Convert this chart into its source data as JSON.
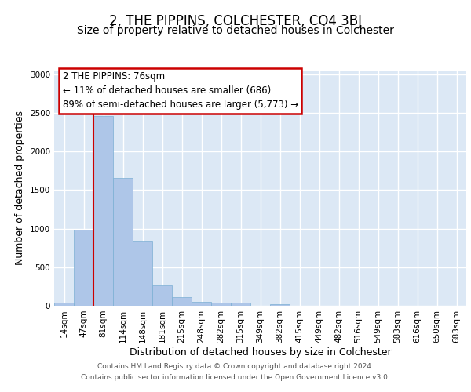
{
  "title": "2, THE PIPPINS, COLCHESTER, CO4 3BJ",
  "subtitle": "Size of property relative to detached houses in Colchester",
  "xlabel": "Distribution of detached houses by size in Colchester",
  "ylabel": "Number of detached properties",
  "bar_labels": [
    "14sqm",
    "47sqm",
    "81sqm",
    "114sqm",
    "148sqm",
    "181sqm",
    "215sqm",
    "248sqm",
    "282sqm",
    "315sqm",
    "349sqm",
    "382sqm",
    "415sqm",
    "449sqm",
    "482sqm",
    "516sqm",
    "549sqm",
    "583sqm",
    "616sqm",
    "650sqm",
    "683sqm"
  ],
  "bar_values": [
    40,
    990,
    2460,
    1660,
    830,
    265,
    115,
    50,
    45,
    40,
    0,
    20,
    0,
    0,
    0,
    0,
    0,
    0,
    0,
    0,
    0
  ],
  "bar_color": "#aec6e8",
  "bar_edge_color": "#7bafd4",
  "ylim": [
    0,
    3050
  ],
  "yticks": [
    0,
    500,
    1000,
    1500,
    2000,
    2500,
    3000
  ],
  "property_line_x": 1.5,
  "property_line_color": "#cc0000",
  "annotation_text": "2 THE PIPPINS: 76sqm\n← 11% of detached houses are smaller (686)\n89% of semi-detached houses are larger (5,773) →",
  "annotation_box_color": "#cc0000",
  "footer_line1": "Contains HM Land Registry data © Crown copyright and database right 2024.",
  "footer_line2": "Contains public sector information licensed under the Open Government Licence v3.0.",
  "title_fontsize": 12,
  "subtitle_fontsize": 10,
  "axis_label_fontsize": 9,
  "tick_fontsize": 7.5,
  "annotation_fontsize": 8.5,
  "footer_fontsize": 6.5,
  "background_color": "#dce8f5",
  "grid_color": "#ffffff",
  "fig_background": "#ffffff"
}
